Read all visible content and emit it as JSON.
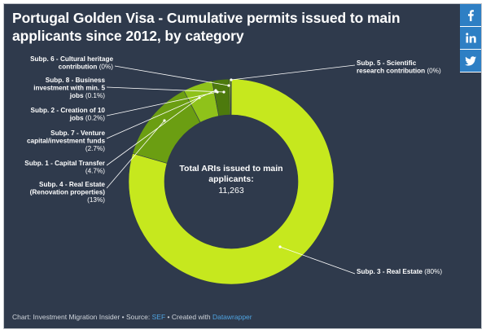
{
  "title": "Portugal Golden Visa - Cumulative permits issued to main applicants since 2012, by category",
  "share": {
    "facebook_icon": "facebook-icon",
    "linkedin_icon": "linkedin-icon",
    "twitter_icon": "twitter-icon",
    "color": "#2e7fc4"
  },
  "footer": {
    "prefix": "Chart: Investment Migration Insider • Source: ",
    "source": "SEF",
    "middle": " • Created with ",
    "tool": "Datawrapper"
  },
  "chart_data": {
    "type": "pie",
    "donut": true,
    "title": "Portugal Golden Visa - Cumulative permits issued to main applicants since 2012, by category",
    "center_label": [
      "Total ARIs issued to main",
      "applicants:"
    ],
    "center_value": "11,263",
    "slices": [
      {
        "name": "Subp. 3 - Real Estate",
        "value_label": "(80%)",
        "value": 80,
        "color": "#c6e81e"
      },
      {
        "name": "Subp. 4 - Real Estate (Renovation properties)",
        "value_label": "(13%)",
        "value": 13,
        "color": "#6b9e12"
      },
      {
        "name": "Subp. 1 - Capital Transfer",
        "value_label": "(4.7%)",
        "value": 4.7,
        "color": "#8fc21a"
      },
      {
        "name": "Subp. 7 - Venture capital/investment funds",
        "value_label": "(2.7%)",
        "value": 2.7,
        "color": "#4d7a0d"
      },
      {
        "name": "Subp. 2 - Creation of 10 jobs",
        "value_label": "(0.2%)",
        "value": 0.2,
        "color": "#a6d01c"
      },
      {
        "name": "Subp. 8 - Business investment with min. 5 jobs",
        "value_label": "(0.1%)",
        "value": 0.1,
        "color": "#5b8a10"
      },
      {
        "name": "Subp. 6 - Cultural heritage contribution",
        "value_label": "(0%)",
        "value": 0,
        "color": "#3f660a"
      },
      {
        "name": "Subp. 5 - Scientific research contribution",
        "value_label": "(0%)",
        "value": 0,
        "color": "#9bc41a"
      }
    ],
    "labels": {
      "s6": [
        "Subp. 6 - Cultural heritage",
        "contribution "
      ],
      "s8": [
        "Subp. 8 - Business",
        "investment with min. 5",
        "jobs "
      ],
      "s2": [
        "Subp. 2 - Creation of 10",
        "jobs "
      ],
      "s7": [
        "Subp. 7 - Venture",
        "capital/investment funds"
      ],
      "s1": [
        "Subp. 1 - Capital Transfer"
      ],
      "s4": [
        "Subp. 4 - Real Estate",
        "(Renovation properties)"
      ],
      "s5": [
        "Subp. 5 - Scientific",
        "research contribution "
      ],
      "s3": [
        "Subp. 3 - Real Estate "
      ]
    }
  }
}
